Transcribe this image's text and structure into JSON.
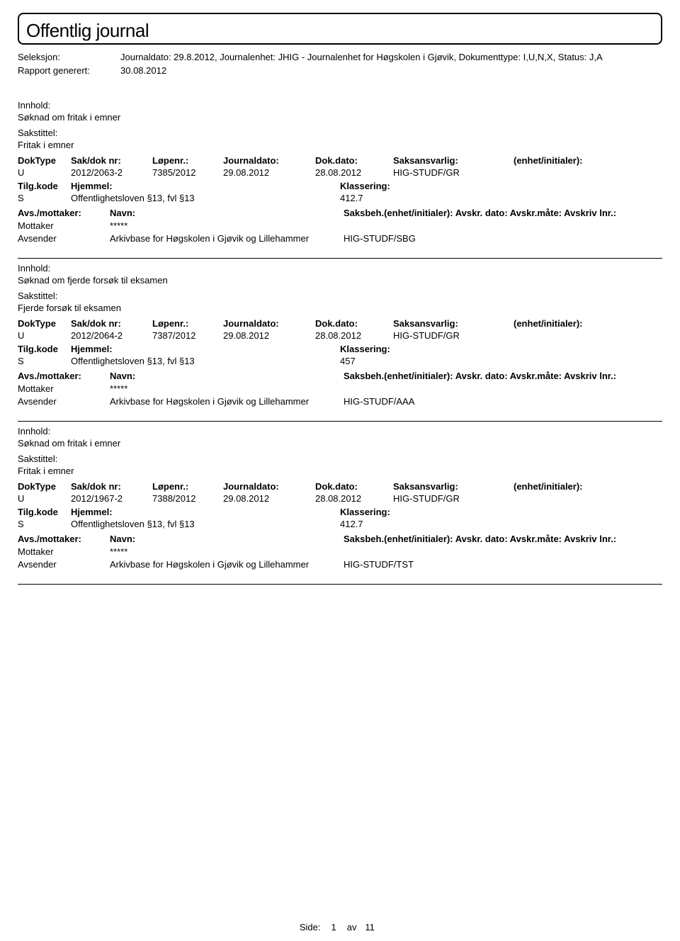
{
  "title": "Offentlig journal",
  "header": {
    "seleksjon_label": "Seleksjon:",
    "seleksjon_value": "Journaldato: 29.8.2012, Journalenhet: JHIG - Journalenhet for Høgskolen i Gjøvik, Dokumenttype: I,U,N,X, Status: J,A",
    "rapport_label": "Rapport generert:",
    "rapport_value": "30.08.2012"
  },
  "labels": {
    "innhold": "Innhold:",
    "sakstittel": "Sakstittel:",
    "doktype": "DokType",
    "sakdok": "Sak/dok nr:",
    "lopenr": "Løpenr.:",
    "jdato": "Journaldato:",
    "ddato": "Dok.dato:",
    "saksansvarlig": "Saksansvarlig:",
    "enhetinit": "(enhet/initialer):",
    "tilgkode": "Tilg.kode",
    "hjemmel": "Hjemmel:",
    "klassering": "Klassering:",
    "avsmottaker": "Avs./mottaker:",
    "navn": "Navn:",
    "saksbeh_line": "Saksbeh.(enhet/initialer): Avskr. dato: Avskr.måte: Avskriv lnr.:",
    "mottaker": "Mottaker",
    "avsender": "Avsender",
    "stars": "*****",
    "side": "Side:",
    "av": "av"
  },
  "entries": [
    {
      "innhold": "Søknad om fritak i emner",
      "sakstittel": "Fritak i emner",
      "doktype": "U",
      "sakdok": "2012/2063-2",
      "lopenr": "7385/2012",
      "jdato": "29.08.2012",
      "ddato": "28.08.2012",
      "saksansvarlig": "HIG-STUDF/GR",
      "tilgkode": "S",
      "hjemmel": "Offentlighetsloven §13, fvl §13",
      "klassering": "412.7",
      "avsender_navn": "Arkivbase for Høgskolen i Gjøvik og Lillehammer",
      "avsender_unit": "HIG-STUDF/SBG"
    },
    {
      "innhold": "Søknad om fjerde forsøk til eksamen",
      "sakstittel": "Fjerde forsøk til eksamen",
      "doktype": "U",
      "sakdok": "2012/2064-2",
      "lopenr": "7387/2012",
      "jdato": "29.08.2012",
      "ddato": "28.08.2012",
      "saksansvarlig": "HIG-STUDF/GR",
      "tilgkode": "S",
      "hjemmel": "Offentlighetsloven §13, fvl §13",
      "klassering": "457",
      "avsender_navn": "Arkivbase for Høgskolen i Gjøvik og Lillehammer",
      "avsender_unit": "HIG-STUDF/AAA"
    },
    {
      "innhold": "Søknad om fritak i emner",
      "sakstittel": "Fritak i emner",
      "doktype": "U",
      "sakdok": "2012/1967-2",
      "lopenr": "7388/2012",
      "jdato": "29.08.2012",
      "ddato": "28.08.2012",
      "saksansvarlig": "HIG-STUDF/GR",
      "tilgkode": "S",
      "hjemmel": "Offentlighetsloven §13, fvl §13",
      "klassering": "412.7",
      "avsender_navn": "Arkivbase for Høgskolen i Gjøvik og Lillehammer",
      "avsender_unit": "HIG-STUDF/TST"
    }
  ],
  "footer": {
    "page": "1",
    "total": "11"
  }
}
